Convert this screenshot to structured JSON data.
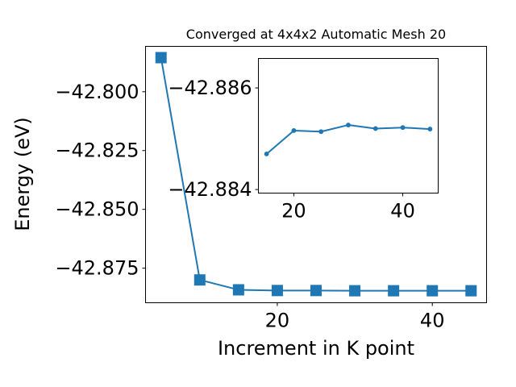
{
  "chart_data": [
    {
      "type": "line",
      "title": "Converged at 4x4x2 Automatic Mesh 20",
      "xlabel": "Increment in K point",
      "ylabel": "Energy (eV)",
      "x": [
        5,
        10,
        15,
        20,
        25,
        30,
        35,
        40,
        45
      ],
      "series": [
        {
          "values": [
            -42.7855,
            -42.88,
            -42.8842,
            -42.8845,
            -42.8845,
            -42.8846,
            -42.8846,
            -42.8846,
            -42.8846
          ]
        }
      ],
      "xticks": [
        20,
        40
      ],
      "yticks": [
        -42.8,
        -42.825,
        -42.85,
        -42.875
      ],
      "xtick_labels": [
        "20",
        "40"
      ],
      "ytick_labels": [
        "−42.800",
        "−42.825",
        "−42.850",
        "−42.875"
      ],
      "xlim": [
        3.0,
        47.0
      ],
      "ylim": [
        -42.8897,
        -42.7807
      ],
      "marker": "square",
      "color": "#1f77b4",
      "grid": false
    },
    {
      "type": "line",
      "title": "",
      "xlabel": "",
      "ylabel": "",
      "x": [
        15,
        20,
        25,
        30,
        35,
        40,
        45
      ],
      "series": [
        {
          "values": [
            -42.8847,
            -42.88516,
            -42.88514,
            -42.88527,
            -42.8852,
            -42.88522,
            -42.88519
          ]
        }
      ],
      "xticks": [
        20,
        40
      ],
      "yticks": [
        -42.886,
        -42.884
      ],
      "xtick_labels": [
        "20",
        "40"
      ],
      "ytick_labels": [
        "−42.886",
        "−42.884"
      ],
      "xlim": [
        13.5,
        46.5
      ],
      "ylim": [
        -42.88393,
        -42.88658
      ],
      "marker": "circle",
      "color": "#1f77b4",
      "grid": false
    }
  ]
}
